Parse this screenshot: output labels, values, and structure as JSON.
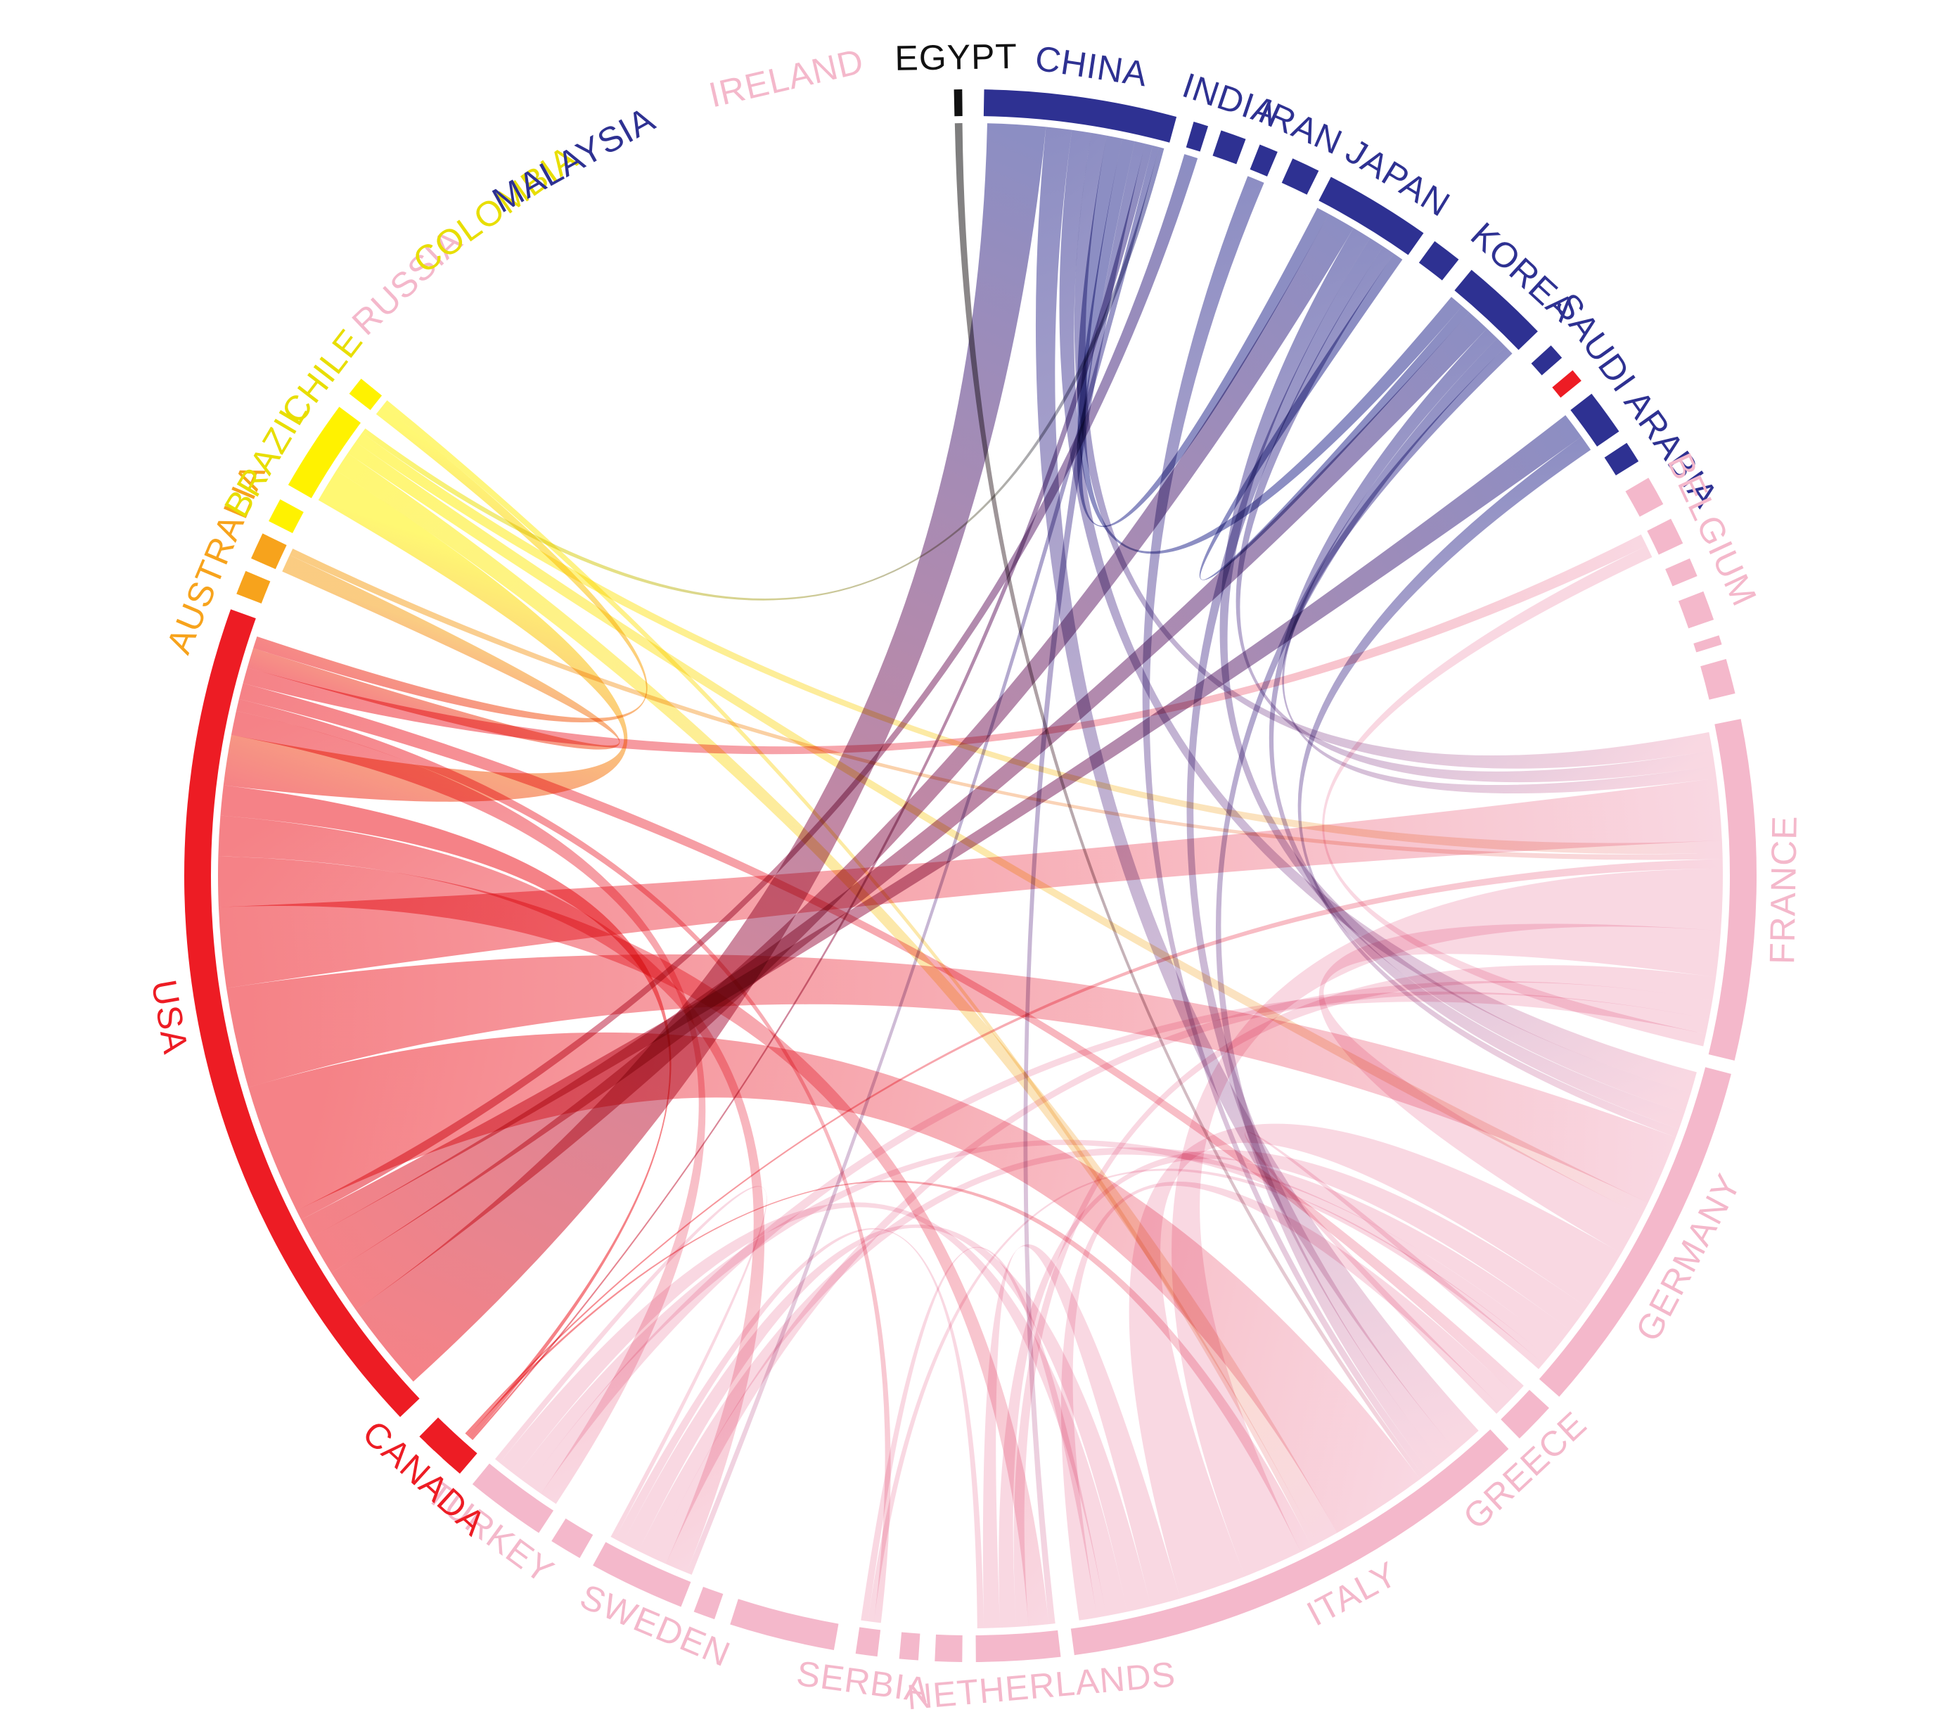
{
  "diagram": {
    "type": "chord",
    "groups": [
      {
        "name": "EGYPT",
        "color": "#111111",
        "a0": -1.2,
        "a1": -0.6,
        "lab": -1.0
      },
      {
        "name": "CHINA",
        "color": "#2e3192",
        "a0": 1.0,
        "a1": 15.2,
        "lab": 8.5
      },
      {
        "name": "INDIA",
        "color": "#2e3192",
        "a0": 16.5,
        "a1": 17.6,
        "lab": 18.5
      },
      {
        "name": "",
        "color": "#2e3192",
        "a0": 18.6,
        "a1": 20.5
      },
      {
        "name": "IRAN",
        "color": "#2e3192",
        "a0": 21.6,
        "a1": 23.0,
        "lab": 23.8
      },
      {
        "name": "",
        "color": "#2e3192",
        "a0": 24.2,
        "a1": 26.3
      },
      {
        "name": "JAPAN",
        "color": "#2e3192",
        "a0": 27.3,
        "a1": 35.2,
        "lab": 31.5
      },
      {
        "name": "",
        "color": "#2e3192",
        "a0": 36.2,
        "a1": 38.4
      },
      {
        "name": "KOREA",
        "color": "#2e3192",
        "a0": 39.6,
        "a1": 46.2,
        "lab": 42.5
      },
      {
        "name": "",
        "color": "#2e3192",
        "a0": 47.6,
        "a1": 48.8
      },
      {
        "name": "",
        "color": "#ed1c24",
        "a0": 50.0,
        "a1": 51.0
      },
      {
        "name": "SAUDI ARABIA",
        "color": "#2e3192",
        "a0": 52.2,
        "a1": 55.6,
        "lab": 54.5
      },
      {
        "name": "",
        "color": "#2e3192",
        "a0": 56.6,
        "a1": 58.2
      },
      {
        "name": "",
        "color": "#f4b8cb",
        "a0": 59.6,
        "a1": 61.8
      },
      {
        "name": "BELGIUM",
        "color": "#f4b8cb",
        "a0": 63.0,
        "a1": 65.0,
        "lab": 65.0
      },
      {
        "name": "",
        "color": "#f4b8cb",
        "a0": 66.2,
        "a1": 67.6
      },
      {
        "name": "",
        "color": "#f4b8cb",
        "a0": 68.8,
        "a1": 71.0
      },
      {
        "name": "",
        "color": "#f4b8cb",
        "a0": 72.2,
        "a1": 72.9
      },
      {
        "name": "",
        "color": "#f4b8cb",
        "a0": 74.0,
        "a1": 76.6
      },
      {
        "name": "FRANCE",
        "color": "#f4b8cb",
        "a0": 78.5,
        "a1": 103.6,
        "lab": 91.0
      },
      {
        "name": "GERMANY",
        "color": "#f4b8cb",
        "a0": 104.6,
        "a1": 131.5,
        "lab": 118.0
      },
      {
        "name": "GREECE",
        "color": "#f4b8cb",
        "a0": 132.6,
        "a1": 135.7,
        "lab": 137.0
      },
      {
        "name": "ITALY",
        "color": "#f4b8cb",
        "a0": 136.8,
        "a1": 172.4,
        "lab": 152.0
      },
      {
        "name": "NETHERLANDS",
        "color": "#f4b8cb",
        "a0": 173.4,
        "a1": 179.6,
        "lab": 175.0
      },
      {
        "name": "",
        "color": "#f4b8cb",
        "a0": 180.6,
        "a1": 182.6
      },
      {
        "name": "",
        "color": "#f4b8cb",
        "a0": 183.8,
        "a1": 185.2
      },
      {
        "name": "SERBIA",
        "color": "#f4b8cb",
        "a0": 186.8,
        "a1": 188.4,
        "lab": 187.6
      },
      {
        "name": "",
        "color": "#f4b8cb",
        "a0": 190.0,
        "a1": 197.8
      },
      {
        "name": "",
        "color": "#f4b8cb",
        "a0": 199.0,
        "a1": 200.6
      },
      {
        "name": "SWEDEN",
        "color": "#f4b8cb",
        "a0": 201.6,
        "a1": 208.7,
        "lab": 202.8
      },
      {
        "name": "",
        "color": "#f4b8cb",
        "a0": 209.8,
        "a1": 212.2
      },
      {
        "name": "TURKEY",
        "color": "#f4b8cb",
        "a0": 213.3,
        "a1": 219.3,
        "lab": 216.2
      },
      {
        "name": "",
        "color": "#ed1c24",
        "a0": 223.0,
        "a1": 223.8
      },
      {
        "name": "CANADA",
        "color": "#ed1c24",
        "a0": 221.4,
        "a1": 222.2,
        "lab": 222.2
      },
      {
        "name": "",
        "color": "#ed1c24",
        "a0": 220.5,
        "a1": 224.5
      },
      {
        "name": "USA",
        "color": "#ed1c24",
        "a0": 226.5,
        "a1": 289.8,
        "lab": 260.0
      },
      {
        "name": "",
        "color": "#f7a31c",
        "a0": 291.0,
        "a1": 292.8
      },
      {
        "name": "AUSTRALIA",
        "color": "#f7a31c",
        "a0": 293.8,
        "a1": 295.8,
        "lab": 292.8
      },
      {
        "name": "",
        "color": "#fff200",
        "a0": 296.8,
        "a1": 298.6
      },
      {
        "name": "BRAZIL",
        "color": "#fff200",
        "a0": 299.8,
        "a1": 306.6,
        "lab": 300.6
      },
      {
        "name": "CHILE",
        "color": "#fff200",
        "a0": 307.8,
        "a1": 309.2,
        "lab": 307.6
      },
      {
        "name": "RUSSIA",
        "color": "#f4b8cb",
        "a0": 315.0,
        "a1": 315.0,
        "lab": 316.5
      },
      {
        "name": "COLOMBIA",
        "color": "#fff200",
        "a0": 322.0,
        "a1": 322.0,
        "lab": 324.5
      },
      {
        "name": "MALAYSIA",
        "color": "#2e3192",
        "a0": 331.5,
        "a1": 331.5,
        "lab": 331.0
      },
      {
        "name": "IRELAND",
        "color": "#f4b8cb",
        "a0": 346.0,
        "a1": 346.0,
        "lab": 347.0
      }
    ],
    "links": [
      {
        "s": "CHINA",
        "t": "USA",
        "w": 4.5
      },
      {
        "s": "CHINA",
        "t": "ITALY",
        "w": 2.0
      },
      {
        "s": "CHINA",
        "t": "GERMANY",
        "w": 1.5
      },
      {
        "s": "CHINA",
        "t": "FRANCE",
        "w": 1.2
      },
      {
        "s": "CHINA",
        "t": "KOREA",
        "w": 1.2
      },
      {
        "s": "CHINA",
        "t": "JAPAN",
        "w": 1.0
      },
      {
        "s": "CHINA",
        "t": "NETHERLANDS",
        "w": 0.8
      },
      {
        "s": "CHINA",
        "t": "CANADA",
        "w": 0.6
      },
      {
        "s": "CHINA",
        "t": "SWEDEN",
        "w": 0.5
      },
      {
        "s": "JAPAN",
        "t": "USA",
        "w": 2.2
      },
      {
        "s": "JAPAN",
        "t": "GERMANY",
        "w": 1.5
      },
      {
        "s": "JAPAN",
        "t": "ITALY",
        "w": 1.2
      },
      {
        "s": "JAPAN",
        "t": "FRANCE",
        "w": 1.0
      },
      {
        "s": "JAPAN",
        "t": "KOREA",
        "w": 0.8
      },
      {
        "s": "KOREA",
        "t": "USA",
        "w": 2.0
      },
      {
        "s": "KOREA",
        "t": "GERMANY",
        "w": 1.2
      },
      {
        "s": "KOREA",
        "t": "ITALY",
        "w": 1.0
      },
      {
        "s": "KOREA",
        "t": "FRANCE",
        "w": 0.8
      },
      {
        "s": "SAUDI ARABIA",
        "t": "USA",
        "w": 1.0
      },
      {
        "s": "SAUDI ARABIA",
        "t": "GERMANY",
        "w": 0.6
      },
      {
        "s": "IRAN",
        "t": "ITALY",
        "w": 0.5
      },
      {
        "s": "INDIA",
        "t": "USA",
        "w": 0.5
      },
      {
        "s": "EGYPT",
        "t": "ITALY",
        "w": 0.3
      },
      {
        "s": "USA",
        "t": "ITALY",
        "w": 6.5
      },
      {
        "s": "USA",
        "t": "GERMANY",
        "w": 5.0
      },
      {
        "s": "USA",
        "t": "FRANCE",
        "w": 4.0
      },
      {
        "s": "USA",
        "t": "NETHERLANDS",
        "w": 2.5
      },
      {
        "s": "USA",
        "t": "SWEDEN",
        "w": 2.0
      },
      {
        "s": "USA",
        "t": "CANADA",
        "w": 1.5
      },
      {
        "s": "USA",
        "t": "BRAZIL",
        "w": 2.5
      },
      {
        "s": "USA",
        "t": "TURKEY",
        "w": 1.2
      },
      {
        "s": "USA",
        "t": "SERBIA",
        "w": 0.6
      },
      {
        "s": "USA",
        "t": "GREECE",
        "w": 0.8
      },
      {
        "s": "USA",
        "t": "BELGIUM",
        "w": 0.8
      },
      {
        "s": "USA",
        "t": "AUSTRALIA",
        "w": 1.0
      },
      {
        "s": "USA",
        "t": "CHILE",
        "w": 0.6
      },
      {
        "s": "BRAZIL",
        "t": "ITALY",
        "w": 1.5
      },
      {
        "s": "BRAZIL",
        "t": "GERMANY",
        "w": 1.0
      },
      {
        "s": "BRAZIL",
        "t": "FRANCE",
        "w": 0.8
      },
      {
        "s": "BRAZIL",
        "t": "CHINA",
        "w": 0.4
      },
      {
        "s": "CHILE",
        "t": "ITALY",
        "w": 0.4
      },
      {
        "s": "AUSTRALIA",
        "t": "FRANCE",
        "w": 0.4
      },
      {
        "s": "CANADA",
        "t": "ITALY",
        "w": 0.8
      },
      {
        "s": "CANADA",
        "t": "FRANCE",
        "w": 0.6
      },
      {
        "s": "FRANCE",
        "t": "ITALY",
        "w": 4.0
      },
      {
        "s": "FRANCE",
        "t": "GERMANY",
        "w": 3.0
      },
      {
        "s": "FRANCE",
        "t": "NETHERLANDS",
        "w": 1.5
      },
      {
        "s": "FRANCE",
        "t": "SWEDEN",
        "w": 1.2
      },
      {
        "s": "FRANCE",
        "t": "TURKEY",
        "w": 1.0
      },
      {
        "s": "FRANCE",
        "t": "BELGIUM",
        "w": 0.8
      },
      {
        "s": "GERMANY",
        "t": "ITALY",
        "w": 4.5
      },
      {
        "s": "GERMANY",
        "t": "NETHERLANDS",
        "w": 2.0
      },
      {
        "s": "GERMANY",
        "t": "SWEDEN",
        "w": 1.5
      },
      {
        "s": "GERMANY",
        "t": "TURKEY",
        "w": 1.0
      },
      {
        "s": "GERMANY",
        "t": "SERBIA",
        "w": 0.5
      },
      {
        "s": "ITALY",
        "t": "NETHERLANDS",
        "w": 2.0
      },
      {
        "s": "ITALY",
        "t": "SWEDEN",
        "w": 1.6
      },
      {
        "s": "ITALY",
        "t": "TURKEY",
        "w": 1.4
      },
      {
        "s": "ITALY",
        "t": "SERBIA",
        "w": 0.6
      },
      {
        "s": "ITALY",
        "t": "GREECE",
        "w": 1.2
      },
      {
        "s": "NETHERLANDS",
        "t": "SWEDEN",
        "w": 0.8
      },
      {
        "s": "GREECE",
        "t": "GERMANY",
        "w": 0.5
      },
      {
        "s": "TURKEY",
        "t": "SWEDEN",
        "w": 0.4
      }
    ]
  }
}
